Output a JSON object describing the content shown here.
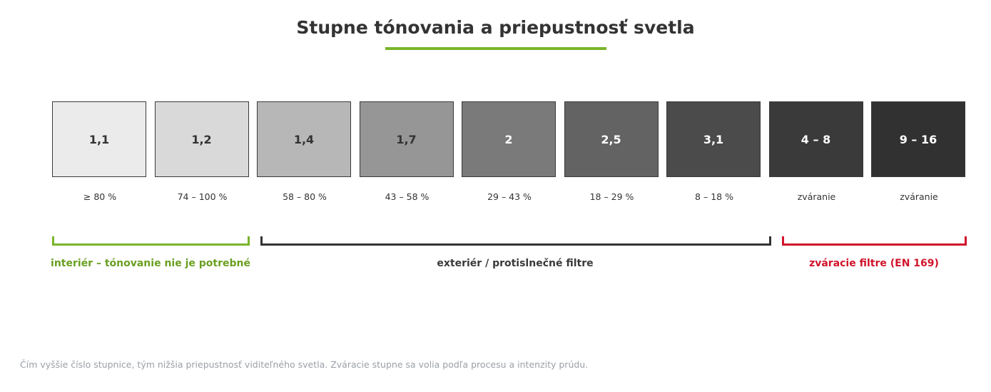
{
  "title": "Stupne tónovania a priepustnosť svetla",
  "colors": {
    "accent_green": "#79b42a",
    "label_green": "#6a9f21",
    "dark": "#333333",
    "red": "#d0152b"
  },
  "grades": [
    {
      "grade": "1,1",
      "transmission": "≥ 80 %",
      "fill": "#ebebeb",
      "text_color": "#333333"
    },
    {
      "grade": "1,2",
      "transmission": "74 – 100 %",
      "fill": "#d9d9d9",
      "text_color": "#333333"
    },
    {
      "grade": "1,4",
      "transmission": "58 – 80 %",
      "fill": "#b7b7b7",
      "text_color": "#333333"
    },
    {
      "grade": "1,7",
      "transmission": "43 – 58 %",
      "fill": "#969696",
      "text_color": "#333333"
    },
    {
      "grade": "2",
      "transmission": "29 – 43 %",
      "fill": "#7a7a7a",
      "text_color": "#ffffff"
    },
    {
      "grade": "2,5",
      "transmission": "18 – 29 %",
      "fill": "#636363",
      "text_color": "#ffffff"
    },
    {
      "grade": "3,1",
      "transmission": "8 – 18 %",
      "fill": "#4b4b4b",
      "text_color": "#ffffff"
    },
    {
      "grade": "4 – 8",
      "transmission": "zváranie",
      "fill": "#3a3a3a",
      "text_color": "#ffffff"
    },
    {
      "grade": "9 – 16",
      "transmission": "zváranie",
      "fill": "#313131",
      "text_color": "#ffffff"
    }
  ],
  "groups": [
    {
      "label": "interiér – tónovanie nie je potrebné",
      "color": "#6a9f21",
      "bracket_color": "#79b42a"
    },
    {
      "label": "exteriér / protislnečné filtre",
      "color": "#3a3a3a",
      "bracket_color": "#333333"
    },
    {
      "label": "zváracie filtre (EN 169)",
      "color": "#d0152b",
      "bracket_color": "#d0152b"
    }
  ],
  "footnote": "Čím vyššie číslo stupnice, tým nižšia priepustnosť viditeľného svetla. Zváracie stupne sa volia podľa procesu a intenzity prúdu."
}
